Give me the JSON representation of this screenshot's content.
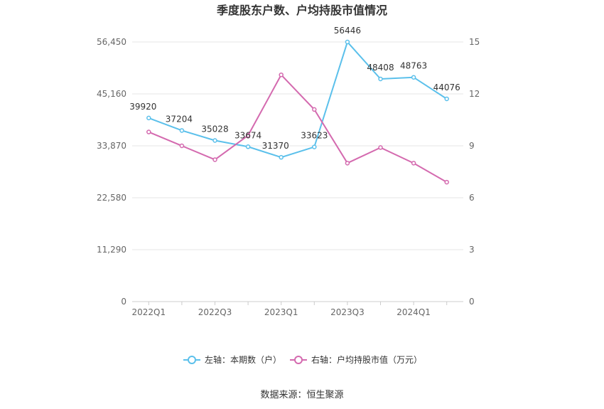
{
  "chart_data": {
    "type": "line",
    "title": "季度股东户数、户均持股市值情况",
    "categories": [
      "2022Q1",
      "2022Q2",
      "2022Q3",
      "2022Q4",
      "2023Q1",
      "2023Q2",
      "2023Q3",
      "2023Q4",
      "2024Q1",
      "2024Q2"
    ],
    "x_tick_labels": [
      "2022Q1",
      "2022Q3",
      "2023Q1",
      "2023Q3",
      "2024Q1"
    ],
    "left_axis": {
      "ticks": [
        "0",
        "11,290",
        "22,580",
        "33,870",
        "45,160",
        "56,450"
      ],
      "ylim": [
        0,
        56450
      ]
    },
    "right_axis": {
      "ticks": [
        "0",
        "3",
        "6",
        "9",
        "12",
        "15"
      ],
      "ylim": [
        0,
        15
      ]
    },
    "series": [
      {
        "name": "左轴：本期数（户）",
        "axis": "left",
        "color": "#5bc0eb",
        "values": [
          39920,
          37204,
          35028,
          33674,
          31370,
          33623,
          56446,
          48408,
          48763,
          44076
        ],
        "labels": [
          "39920",
          "37204",
          "35028",
          "33674",
          "31370",
          "33623",
          "56446",
          "48408",
          "48763",
          "44076"
        ]
      },
      {
        "name": "右轴：户均持股市值（万元）",
        "axis": "right",
        "color": "#d46aaf",
        "values": [
          9.8,
          9.0,
          8.2,
          9.6,
          13.1,
          11.1,
          8.0,
          8.9,
          8.0,
          6.9
        ]
      }
    ],
    "grid": true,
    "legend_position": "bottom-center"
  },
  "source": "数据来源：恒生聚源"
}
